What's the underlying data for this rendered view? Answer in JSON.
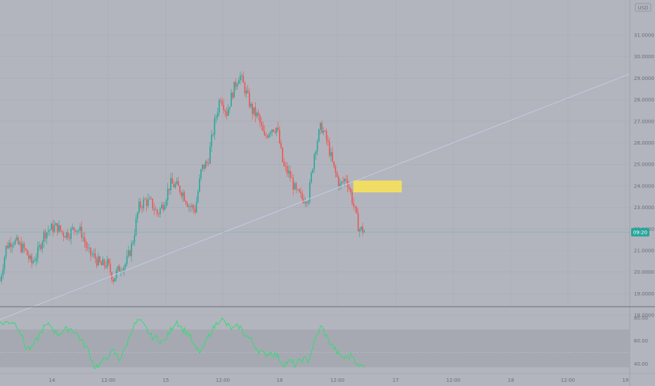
{
  "currency_label": "USD",
  "colors": {
    "background": "#b2b5be",
    "grid": "#a8abb4",
    "up": "#26a69a",
    "down": "#ef5350",
    "trendline": "#c4cbe6",
    "hline": "#7fb3b3",
    "zone": "#f6e15a",
    "rsi_line": "#3ad87a",
    "rsi_band": "#a3a6af",
    "rsi_mid": "#cfd2d9",
    "badge": "#26a69a",
    "pane_divider": "#666a75"
  },
  "chart_data": {
    "type": "candlestick",
    "y_ticks": [
      "31.0000",
      "30.0000",
      "29.0000",
      "28.0000",
      "27.0000",
      "26.0000",
      "25.0000",
      "24.0000",
      "23.0000",
      "22.0000",
      "21.0000",
      "20.0000",
      "19.0000",
      "18.0000"
    ],
    "x_ticks": [
      "14",
      "12:00",
      "15",
      "12:00",
      "16",
      "12:00",
      "17",
      "12:00",
      "18",
      "12:00",
      "19"
    ],
    "ylim": [
      17.7,
      31.6
    ],
    "xlim": [
      0,
      100
    ],
    "price_path": [
      [
        0,
        19.6
      ],
      [
        1,
        21.2
      ],
      [
        2,
        21.5
      ],
      [
        4,
        21.0
      ],
      [
        5,
        20.4
      ],
      [
        6,
        20.9
      ],
      [
        7,
        21.8
      ],
      [
        8,
        22.0
      ],
      [
        9,
        22.1
      ],
      [
        10,
        21.8
      ],
      [
        11,
        21.8
      ],
      [
        12,
        22.1
      ],
      [
        13,
        21.8
      ],
      [
        14,
        20.9
      ],
      [
        15,
        20.7
      ],
      [
        16,
        20.3
      ],
      [
        17,
        20.4
      ],
      [
        18,
        19.7
      ],
      [
        19,
        20.2
      ],
      [
        20,
        20.4
      ],
      [
        21,
        21.3
      ],
      [
        22,
        23.0
      ],
      [
        23,
        23.3
      ],
      [
        24,
        23.2
      ],
      [
        25,
        22.7
      ],
      [
        26,
        23.2
      ],
      [
        27,
        24.1
      ],
      [
        28,
        24.0
      ],
      [
        29,
        23.7
      ],
      [
        30,
        23.1
      ],
      [
        31,
        22.9
      ],
      [
        32,
        24.8
      ],
      [
        33,
        25.1
      ],
      [
        34,
        26.8
      ],
      [
        35,
        28.2
      ],
      [
        36,
        27.4
      ],
      [
        37,
        28.4
      ],
      [
        38,
        29.2
      ],
      [
        39,
        28.4
      ],
      [
        40,
        27.5
      ],
      [
        41,
        27.2
      ],
      [
        42,
        26.2
      ],
      [
        43,
        26.7
      ],
      [
        44,
        26.7
      ],
      [
        45,
        24.9
      ],
      [
        46,
        24.5
      ],
      [
        47,
        23.7
      ],
      [
        48,
        23.4
      ],
      [
        49,
        23.5
      ],
      [
        50,
        25.7
      ],
      [
        51,
        26.8
      ],
      [
        52,
        26.0
      ],
      [
        53,
        24.8
      ],
      [
        54,
        24.0
      ],
      [
        55,
        24.4
      ],
      [
        56,
        23.3
      ],
      [
        57,
        22.0
      ],
      [
        58,
        21.9
      ]
    ],
    "rsi": {
      "levels": [
        80,
        60,
        40
      ],
      "ylim": [
        33,
        83
      ],
      "band": [
        70,
        37
      ],
      "path": [
        [
          0,
          75
        ],
        [
          2,
          77
        ],
        [
          3,
          72
        ],
        [
          4,
          55
        ],
        [
          5,
          53
        ],
        [
          7,
          72
        ],
        [
          8,
          74
        ],
        [
          9,
          66
        ],
        [
          10,
          68
        ],
        [
          11,
          71
        ],
        [
          12,
          68
        ],
        [
          13,
          60
        ],
        [
          14,
          52
        ],
        [
          15,
          37
        ],
        [
          16,
          40
        ],
        [
          17,
          46
        ],
        [
          18,
          51
        ],
        [
          19,
          44
        ],
        [
          20,
          55
        ],
        [
          21,
          71
        ],
        [
          22,
          78
        ],
        [
          23,
          72
        ],
        [
          24,
          64
        ],
        [
          25,
          62
        ],
        [
          26,
          59
        ],
        [
          27,
          68
        ],
        [
          28,
          78
        ],
        [
          29,
          70
        ],
        [
          30,
          66
        ],
        [
          31,
          53
        ],
        [
          32,
          50
        ],
        [
          33,
          63
        ],
        [
          34,
          72
        ],
        [
          35,
          80
        ],
        [
          36,
          74
        ],
        [
          37,
          70
        ],
        [
          38,
          73
        ],
        [
          39,
          65
        ],
        [
          40,
          60
        ],
        [
          41,
          52
        ],
        [
          42,
          48
        ],
        [
          43,
          50
        ],
        [
          44,
          47
        ],
        [
          45,
          40
        ],
        [
          46,
          42
        ],
        [
          47,
          39
        ],
        [
          48,
          44
        ],
        [
          49,
          43
        ],
        [
          50,
          60
        ],
        [
          51,
          73
        ],
        [
          52,
          62
        ],
        [
          53,
          54
        ],
        [
          54,
          47
        ],
        [
          55,
          45
        ],
        [
          56,
          48
        ],
        [
          57,
          37
        ],
        [
          58,
          40
        ]
      ]
    },
    "trendline": {
      "from": [
        0,
        17.8
      ],
      "to": [
        100,
        29.2
      ]
    },
    "horizontal_line": {
      "price": 21.85,
      "label": "09:20"
    },
    "zone": {
      "x": [
        56.1,
        63.8
      ],
      "y": [
        23.7,
        24.25
      ]
    }
  }
}
